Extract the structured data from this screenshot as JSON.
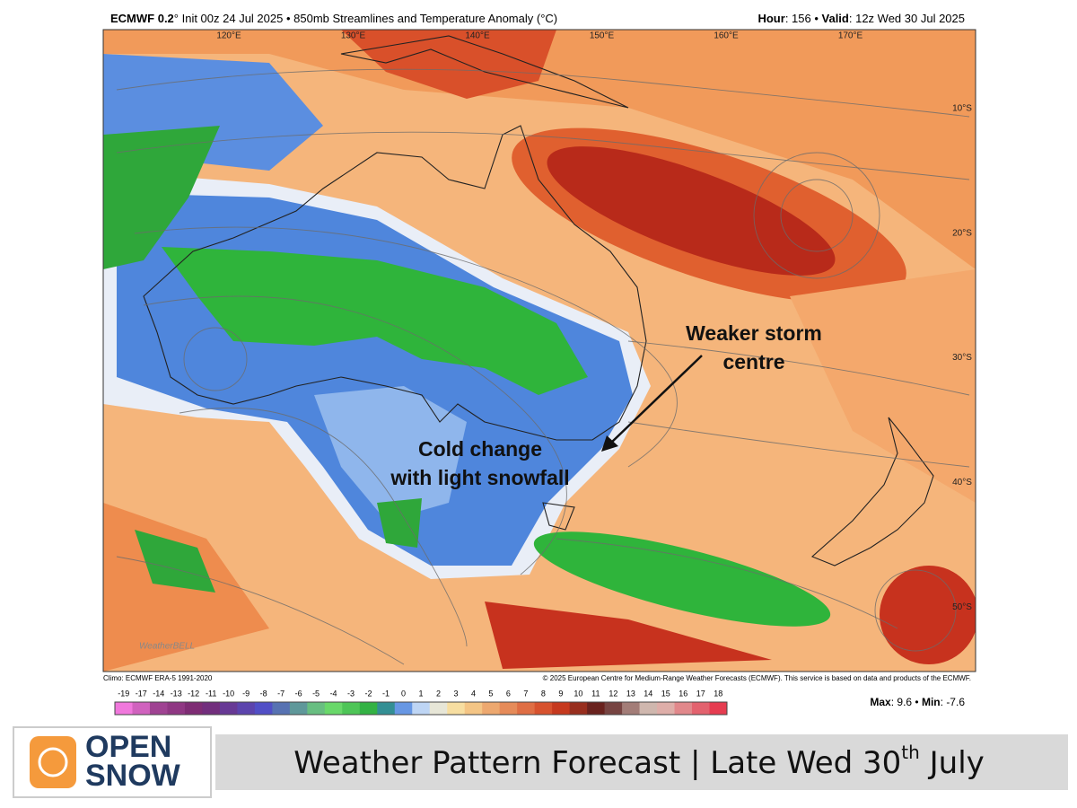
{
  "header": {
    "model": "ECMWF 0.2",
    "title": "° Init 00z 24 Jul 2025 • 850mb Streamlines and Temperature Anomaly (°C)",
    "hour_label": "Hour",
    "hour": ": 156 • ",
    "valid_label": "Valid",
    "valid": ": 12z Wed 30 Jul 2025"
  },
  "map": {
    "longitudes": [
      "120°E",
      "130°E",
      "140°E",
      "150°E",
      "160°E",
      "170°E"
    ],
    "latitudes": [
      "10°S",
      "20°S",
      "30°S",
      "40°S",
      "50°S"
    ],
    "annotations": [
      {
        "lines": [
          "Weaker storm",
          "centre"
        ]
      },
      {
        "lines": [
          "Cold change",
          "with light snowfall"
        ]
      }
    ],
    "watermark": "WeatherBELL"
  },
  "footer": {
    "climo": "Climo: ECMWF ERA-5 1991-2020",
    "copyright": "© 2025 European Centre for Medium-Range Weather Forecasts (ECMWF). This service is based on data and products of the ECMWF."
  },
  "colorbar": {
    "ticks": [
      -19,
      -17,
      -14,
      -13,
      -12,
      -11,
      -10,
      -9,
      -8,
      -7,
      -6,
      -5,
      -4,
      -3,
      -2,
      -1,
      0,
      1,
      2,
      3,
      4,
      5,
      6,
      7,
      8,
      9,
      10,
      11,
      12,
      13,
      14,
      15,
      16,
      17,
      18
    ]
  },
  "stats": {
    "max_label": "Max",
    "max": 9.6,
    "sep": " • ",
    "min_label": "Min",
    "min": -7.6
  },
  "banner": {
    "logo": [
      "OPEN",
      "SNOW"
    ],
    "text": "Weather Pattern Forecast | Late Wed 30",
    "sup": "th",
    "end": " July"
  }
}
